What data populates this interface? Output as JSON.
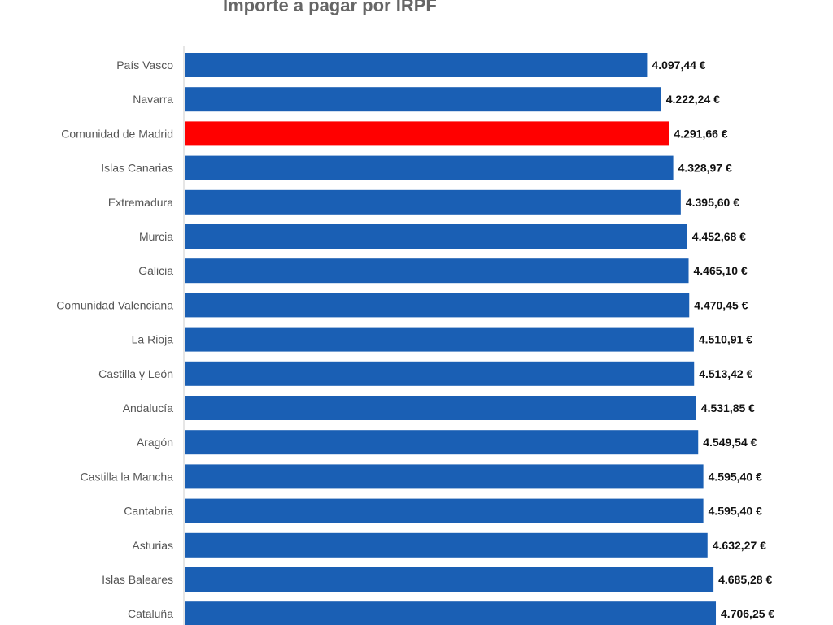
{
  "chart_data": {
    "type": "bar",
    "orientation": "horizontal",
    "title": "Importe a pagar por IRPF",
    "categories": [
      "País Vasco",
      "Navarra",
      "Comunidad de Madrid",
      "Islas Canarias",
      "Extremadura",
      "Murcia",
      "Galicia",
      "Comunidad Valenciana",
      "La Rioja",
      "Castilla y León",
      "Andalucía",
      "Aragón",
      "Castilla la Mancha",
      "Cantabria",
      "Asturias",
      "Islas Baleares",
      "Cataluña"
    ],
    "values": [
      4097.44,
      4222.24,
      4291.66,
      4328.97,
      4395.6,
      4452.68,
      4465.1,
      4470.45,
      4510.91,
      4513.42,
      4531.85,
      4549.54,
      4595.4,
      4595.4,
      4632.27,
      4685.28,
      4706.25
    ],
    "value_labels": [
      "4.097,44 €",
      "4.222,24 €",
      "4.291,66 €",
      "4.328,97 €",
      "4.395,60 €",
      "4.452,68 €",
      "4.465,10 €",
      "4.470,45 €",
      "4.510,91 €",
      "4.513,42 €",
      "4.531,85 €",
      "4.549,54 €",
      "4.595,40 €",
      "4.595,40 €",
      "4.632,27 €",
      "4.685,28 €",
      "4.706,25 €"
    ],
    "highlight_category": "Comunidad de Madrid",
    "bar_color": "#1a5fb4",
    "highlight_color": "#ff0000",
    "xlim": [
      0,
      4850
    ],
    "grid": false,
    "legend": "none",
    "xlabel": "",
    "ylabel": ""
  }
}
